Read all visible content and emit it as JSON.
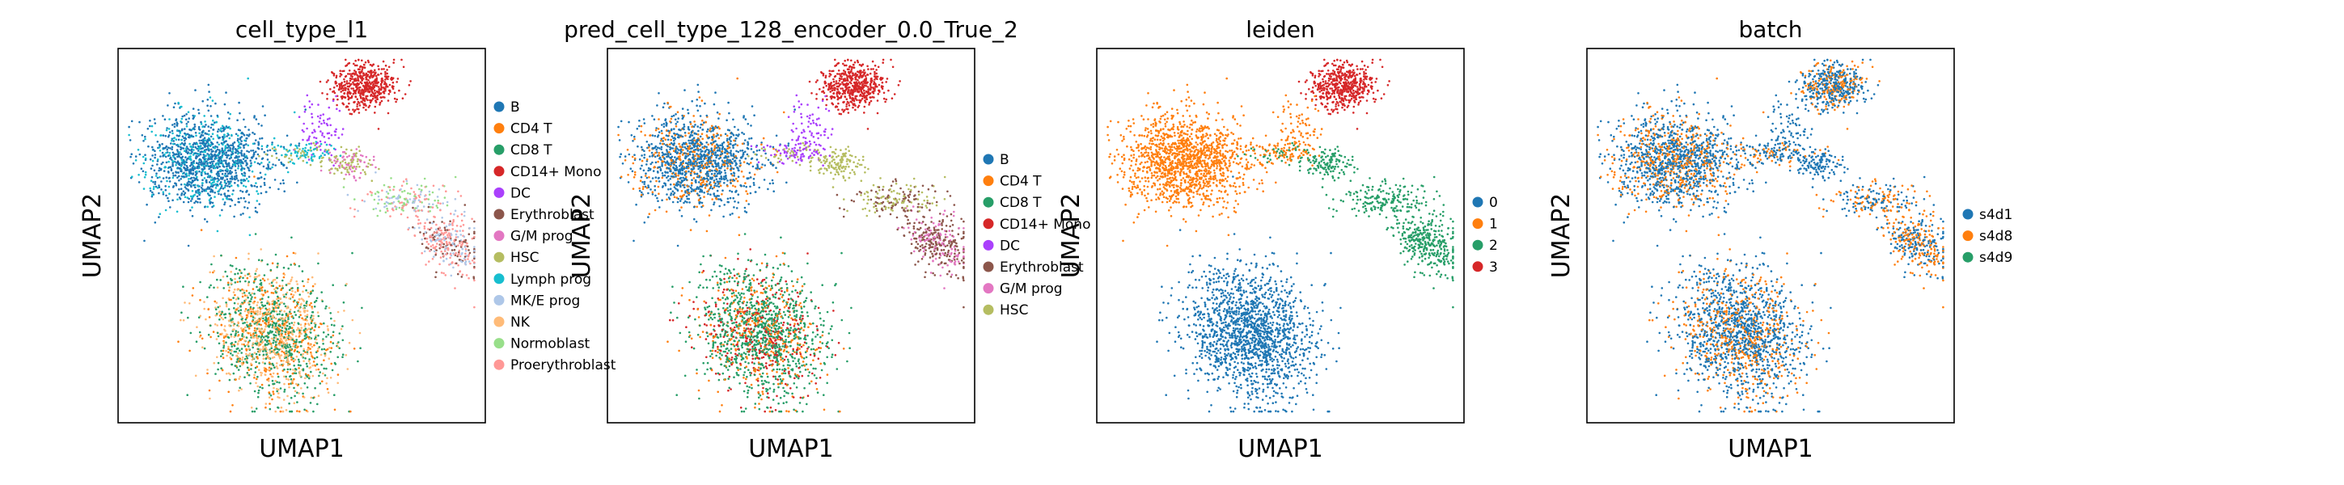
{
  "chart_data": [
    {
      "type": "scatter",
      "title": "cell_type_l1",
      "xlabel": "UMAP1",
      "ylabel": "UMAP2",
      "legend_placement": "right",
      "grid": false,
      "categories": [
        "B",
        "CD4 T",
        "CD8 T",
        "CD14+ Mono",
        "DC",
        "Erythroblast",
        "G/M prog",
        "HSC",
        "Lymph prog",
        "MK/E prog",
        "NK",
        "Normoblast",
        "Proerythroblast"
      ],
      "colors": [
        "#1f77b4",
        "#ff7f0e",
        "#279e68",
        "#d62728",
        "#aa40fc",
        "#8c564b",
        "#e377c2",
        "#b5bd61",
        "#17becf",
        "#aec7e8",
        "#ffbb78",
        "#98df8a",
        "#ff9896"
      ]
    },
    {
      "type": "scatter",
      "title": "pred_cell_type_128_encoder_0.0_True_2",
      "xlabel": "UMAP1",
      "ylabel": "UMAP2",
      "legend_placement": "right",
      "grid": false,
      "categories": [
        "B",
        "CD4 T",
        "CD8 T",
        "CD14+ Mono",
        "DC",
        "Erythroblast",
        "G/M prog",
        "HSC"
      ],
      "colors": [
        "#1f77b4",
        "#ff7f0e",
        "#279e68",
        "#d62728",
        "#aa40fc",
        "#8c564b",
        "#e377c2",
        "#b5bd61"
      ]
    },
    {
      "type": "scatter",
      "title": "leiden",
      "xlabel": "UMAP1",
      "ylabel": "UMAP2",
      "legend_placement": "right",
      "grid": false,
      "categories": [
        "0",
        "1",
        "2",
        "3"
      ],
      "colors": [
        "#1f77b4",
        "#ff7f0e",
        "#279e68",
        "#d62728"
      ]
    },
    {
      "type": "scatter",
      "title": "batch",
      "xlabel": "UMAP1",
      "ylabel": "UMAP2",
      "legend_placement": "right",
      "grid": false,
      "categories": [
        "s4d1",
        "s4d8",
        "s4d9"
      ],
      "colors": [
        "#1f77b4",
        "#ff7f0e",
        "#279e68"
      ]
    }
  ]
}
